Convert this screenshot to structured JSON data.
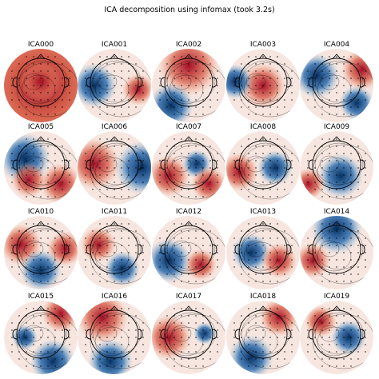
{
  "title": "ICA decomposition using infomax (took 3.2s)",
  "panels": [
    "ICA000",
    "ICA001",
    "ICA002",
    "ICA003",
    "ICA004",
    "ICA005",
    "ICA006",
    "ICA007",
    "ICA008",
    "ICA009",
    "ICA010",
    "ICA011",
    "ICA012",
    "ICA013",
    "ICA014",
    "ICA015",
    "ICA016",
    "ICA017",
    "ICA018",
    "ICA019"
  ]
}
